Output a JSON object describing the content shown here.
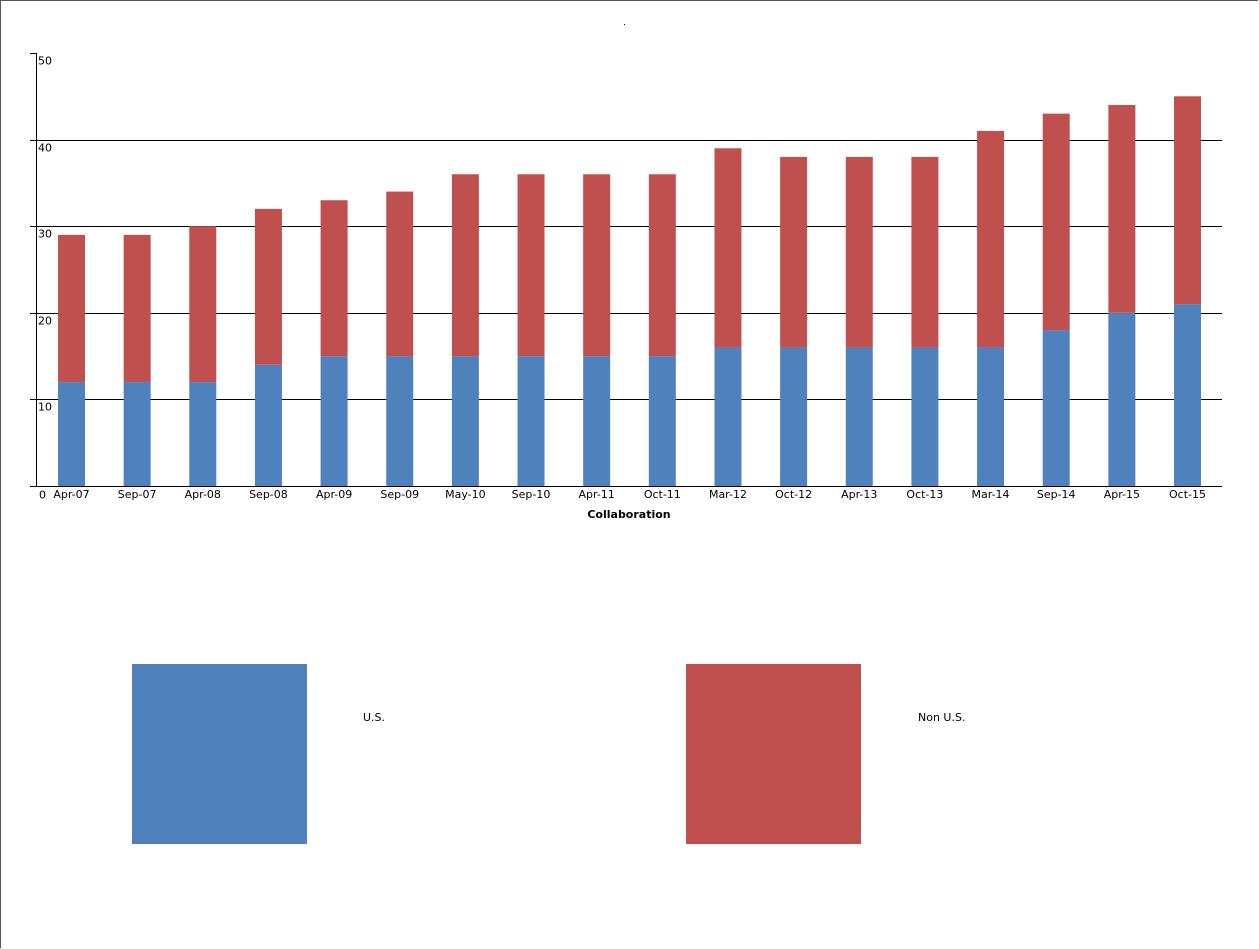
{
  "chart_data": {
    "type": "bar",
    "stacked": true,
    "title": "",
    "xlabel": "Collaboration",
    "ylabel": "",
    "ylim": [
      0,
      50
    ],
    "yticks": [
      0,
      10,
      20,
      30,
      40,
      50
    ],
    "grid": true,
    "legend_position": "bottom",
    "categories": [
      "Apr-07",
      "Sep-07",
      "Apr-08",
      "Sep-08",
      "Apr-09",
      "Sep-09",
      "May-10",
      "Sep-10",
      "Apr-11",
      "Oct-11",
      "Mar-12",
      "Oct-12",
      "Apr-13",
      "Oct-13",
      "Mar-14",
      "Sep-14",
      "Apr-15",
      "Oct-15"
    ],
    "series": [
      {
        "name": "U.S.",
        "color": "#4f81bd",
        "values": [
          12,
          12,
          12,
          14,
          15,
          15,
          15,
          15,
          15,
          15,
          16,
          16,
          16,
          16,
          16,
          18,
          20,
          21
        ]
      },
      {
        "name": "Non U.S.",
        "color": "#c0504d",
        "values": [
          17,
          17,
          18,
          18,
          18,
          19,
          21,
          21,
          21,
          21,
          23,
          22,
          22,
          22,
          25,
          25,
          24,
          24
        ]
      }
    ]
  }
}
